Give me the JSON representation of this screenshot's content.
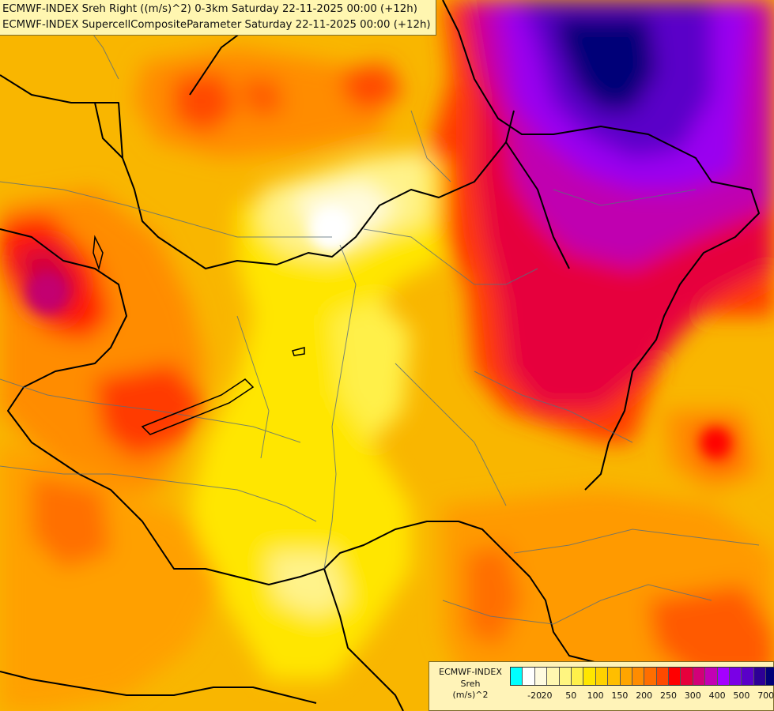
{
  "header": {
    "line1": "ECMWF-INDEX Sreh Right ((m/s)^2) 0-3km Saturday 22-11-2025 00:00 (+12h)",
    "line2": "ECMWF-INDEX SupercellCompositeParameter Saturday 22-11-2025 00:00 (+12h)"
  },
  "legend": {
    "title1": "ECMWF-INDEX",
    "title2": "Sreh",
    "title3": "(m/s)^2",
    "colors": [
      "#00ffff",
      "#ffffff",
      "#fffbe0",
      "#fff7b0",
      "#fff580",
      "#fff04a",
      "#ffe600",
      "#ffd200",
      "#ffbe00",
      "#ffa500",
      "#ff8c00",
      "#ff6e00",
      "#ff4a00",
      "#ff0000",
      "#e6003c",
      "#d20078",
      "#c300b4",
      "#a500ff",
      "#7a00e6",
      "#5a00c8",
      "#2d0096",
      "#000078"
    ],
    "tick_labels": [
      "-20",
      "20",
      "50",
      "100",
      "150",
      "200",
      "250",
      "300",
      "400",
      "500",
      "700"
    ]
  }
}
